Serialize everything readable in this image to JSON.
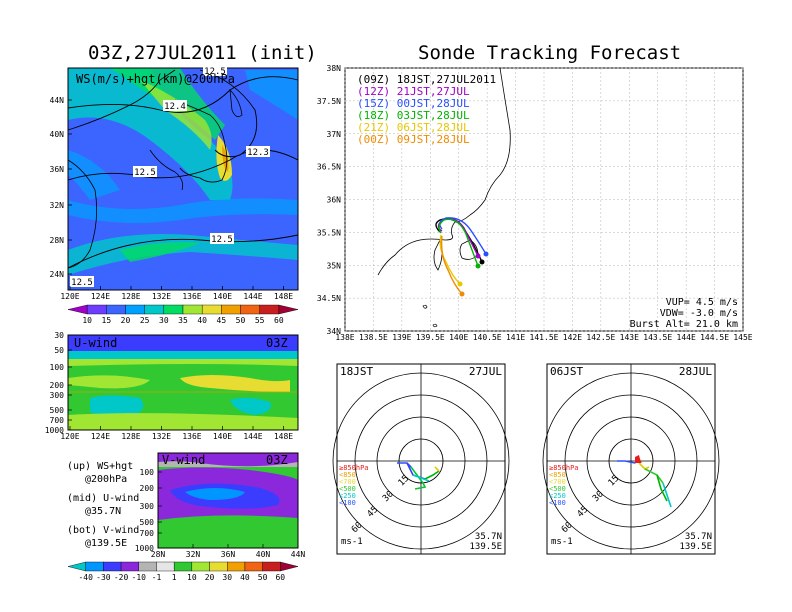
{
  "left_title": "03Z,27JUL2011 (init)",
  "right_title": "Sonde Tracking Forecast",
  "map_panel": {
    "label": "WS(m/s)+hgt(km)@200hPa",
    "lat_ticks": [
      "44N",
      "40N",
      "36N",
      "32N",
      "28N",
      "24N"
    ],
    "lon_ticks": [
      "120E",
      "124E",
      "128E",
      "132E",
      "136E",
      "140E",
      "144E",
      "148E"
    ],
    "contour_labels": [
      "12.4",
      "12.3",
      "12.5",
      "12.5",
      "12.5",
      "12.5"
    ]
  },
  "ws_colorbar": {
    "labels": [
      "10",
      "15",
      "20",
      "25",
      "30",
      "35",
      "40",
      "45",
      "50",
      "55",
      "60"
    ],
    "colors": [
      "#a000c8",
      "#6e3cff",
      "#3c64ff",
      "#00a0ff",
      "#00c8c8",
      "#00dc64",
      "#a0e632",
      "#e6dc32",
      "#f0a000",
      "#f06414",
      "#c81e1e",
      "#a00032"
    ]
  },
  "uwind_panel": {
    "label": "U-wind",
    "time": "03Z",
    "p_ticks": [
      "30",
      "50",
      "100",
      "200",
      "300",
      "500",
      "700",
      "1000"
    ],
    "lon_ticks": [
      "120E",
      "124E",
      "128E",
      "132E",
      "136E",
      "140E",
      "144E",
      "148E"
    ]
  },
  "vwind_panel": {
    "label": "V-wind",
    "time": "03Z",
    "p_ticks": [
      "100",
      "200",
      "300",
      "500",
      "700",
      "1000"
    ],
    "lat_ticks": [
      "28N",
      "32N",
      "36N",
      "40N",
      "44N"
    ]
  },
  "legend_notes": [
    {
      "line1": "(up) WS+hgt",
      "line2": "@200hPa"
    },
    {
      "line1": "(mid) U-wind",
      "line2": "@35.7N"
    },
    {
      "line1": "(bot) V-wind",
      "line2": "@139.5E"
    }
  ],
  "wind_colorbar": {
    "labels": [
      "-40",
      "-30",
      "-20",
      "-10",
      "-1",
      "1",
      "10",
      "20",
      "30",
      "40",
      "50",
      "60"
    ],
    "colors": [
      "#00c8c8",
      "#0096ff",
      "#3c3cff",
      "#8c28dc",
      "#b4b4b4",
      "#e6e6e6",
      "#32c832",
      "#a0e632",
      "#e6dc32",
      "#f0a000",
      "#f06414",
      "#c81e1e",
      "#a00032"
    ]
  },
  "track_map": {
    "lat_ticks": [
      "38N",
      "37.5N",
      "37N",
      "36.5N",
      "36N",
      "35.5N",
      "35N",
      "34.5N",
      "34N"
    ],
    "lon_ticks": [
      "138E",
      "138.5E",
      "139E",
      "139.5E",
      "140E",
      "140.5E",
      "141E",
      "141.5E",
      "142E",
      "142.5E",
      "143E",
      "143.5E",
      "144E",
      "144.5E",
      "145E"
    ],
    "forecasts": [
      {
        "init": "(09Z)",
        "valid": "18JST,27JUL2011",
        "color": "#000000"
      },
      {
        "init": "(12Z)",
        "valid": "21JST,27JUL",
        "color": "#a000c8"
      },
      {
        "init": "(15Z)",
        "valid": "00JST,28JUL",
        "color": "#2850ff"
      },
      {
        "init": "(18Z)",
        "valid": "03JST,28JUL",
        "color": "#00b400"
      },
      {
        "init": "(21Z)",
        "valid": "06JST,28JUL",
        "color": "#e6c800"
      },
      {
        "init": "(00Z)",
        "valid": "09JST,28JUL",
        "color": "#f08c00"
      }
    ],
    "params": [
      "VUP= 4.5 m/s",
      "VDW= -3.0 m/s",
      "Burst Alt= 21.0 km"
    ]
  },
  "hodographs": [
    {
      "time": "18JST",
      "date": "27JUL",
      "lat": "35.7N",
      "lon": "139.5E",
      "unit": "ms-1"
    },
    {
      "time": "06JST",
      "date": "28JUL",
      "lat": "35.7N",
      "lon": "139.5E",
      "unit": "ms-1"
    }
  ],
  "hodo_rings": [
    "15",
    "30",
    "45",
    "60"
  ],
  "hodo_levels": [
    {
      "label": "≥850hPa",
      "color": "#e61e1e"
    },
    {
      "label": "<850",
      "color": "#f0a000"
    },
    {
      "label": "<700",
      "color": "#e6dc32"
    },
    {
      "label": "<500",
      "color": "#32c832"
    },
    {
      "label": "<250",
      "color": "#00c8c8"
    },
    {
      "label": "<100",
      "color": "#2850ff"
    }
  ]
}
